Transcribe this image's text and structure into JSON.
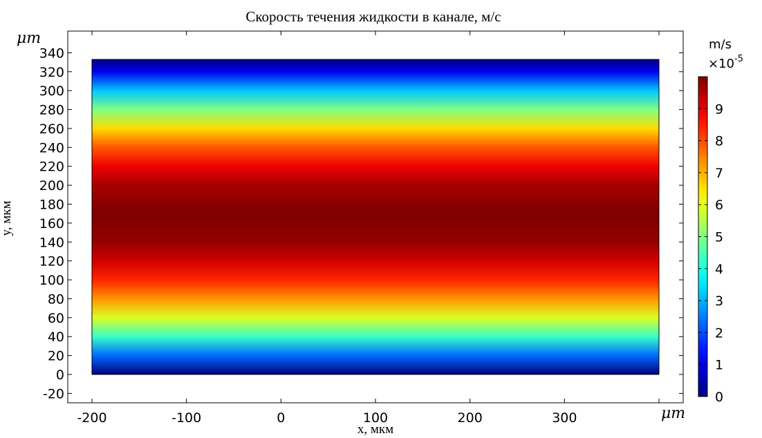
{
  "chart_data": {
    "type": "heatmap",
    "title": "Скорость течения жидкости в канале, м/с",
    "xlabel": "x, мкм",
    "ylabel": "y, мкм",
    "x_unit_label": "μm",
    "y_unit_label": "μm",
    "xlim": [
      -225,
      425
    ],
    "ylim": [
      -30,
      365
    ],
    "xticks": [
      -200,
      -100,
      0,
      100,
      200,
      300,
      400
    ],
    "xtick_labels": [
      "-200",
      "-100",
      "0",
      "100",
      "200",
      "300",
      ""
    ],
    "yticks": [
      -20,
      0,
      20,
      40,
      60,
      80,
      100,
      120,
      140,
      160,
      180,
      200,
      220,
      240,
      260,
      280,
      300,
      320,
      340
    ],
    "ytick_labels": [
      "-20",
      "0",
      "20",
      "40",
      "60",
      "80",
      "100",
      "120",
      "140",
      "160",
      "180",
      "200",
      "220",
      "240",
      "260",
      "280",
      "300",
      "320",
      "340"
    ],
    "domain": {
      "x": [
        -200,
        400
      ],
      "y": [
        0,
        333
      ]
    },
    "profile": {
      "direction": "y",
      "description": "parabolic velocity profile, uniform along x",
      "y": [
        0,
        20,
        40,
        60,
        80,
        100,
        120,
        140,
        166.5,
        180,
        200,
        220,
        240,
        260,
        280,
        300,
        320,
        333
      ],
      "value_e5": [
        0.0,
        2.3,
        4.3,
        5.9,
        7.3,
        8.4,
        9.2,
        9.8,
        10.0,
        9.9,
        9.6,
        8.9,
        7.9,
        6.6,
        5.0,
        3.2,
        1.1,
        0.0
      ]
    },
    "colorbar": {
      "unit": "m/s",
      "scale_label": "×10",
      "scale_exponent": "-5",
      "min": 0,
      "max": 10,
      "ticks": [
        0,
        1,
        2,
        3,
        4,
        5,
        6,
        7,
        8,
        9
      ],
      "tick_labels": [
        "0",
        "1",
        "2",
        "3",
        "4",
        "5",
        "6",
        "7",
        "8",
        "9"
      ],
      "colormap": "jet"
    },
    "grid": false
  }
}
